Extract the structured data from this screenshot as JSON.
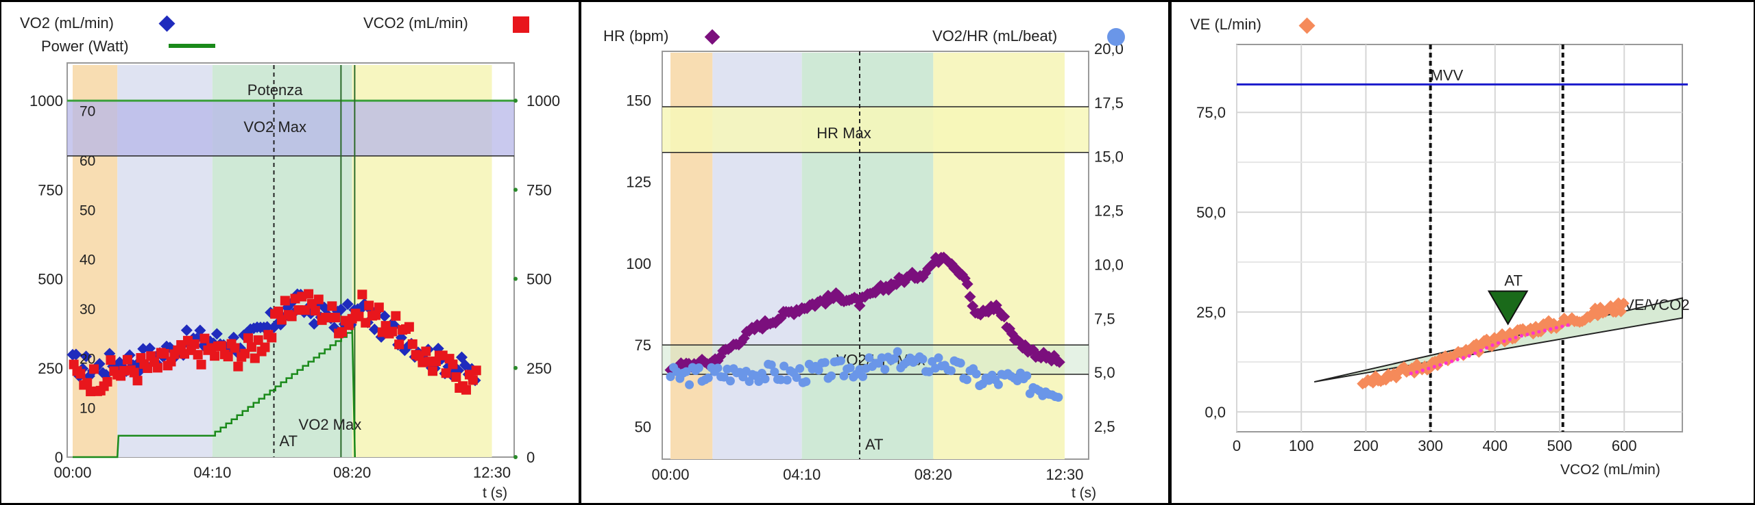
{
  "chart_data": [
    {
      "type": "scatter",
      "legend": {
        "vo2": "VO2 (mL/min)",
        "vco2": "VCO2 (mL/min)",
        "power": "Power (Watt)"
      },
      "xlabel": "t (s)",
      "xticks": [
        "00:00",
        "04:10",
        "08:20",
        "12:30"
      ],
      "x_range_s": [
        0,
        780
      ],
      "ylim": [
        0,
        1100
      ],
      "yticks_left": [
        0,
        250,
        500,
        750,
        1000
      ],
      "yticks_right": [
        0,
        250,
        500,
        750,
        1000
      ],
      "inner_scale_ticks": [
        10,
        20,
        30,
        40,
        50,
        60,
        70
      ],
      "bands_s": [
        [
          0,
          80,
          "#f8ddb2"
        ],
        [
          80,
          250,
          "#dfe3f2"
        ],
        [
          250,
          500,
          "#cfe9d6"
        ],
        [
          500,
          750,
          "#f7f6c0"
        ]
      ],
      "vo2max_band": [
        845,
        1000
      ],
      "vo2max_band_label": "VO2 Max",
      "power_line_label": "Potenza",
      "power_line_value": 1000,
      "at_time_s": 360,
      "at_label": "AT",
      "vo2max_time_s": 480,
      "vo2max_vline_label": "VO2 Max",
      "power_steps": [
        {
          "t": 0,
          "w": 0
        },
        {
          "t": 80,
          "w": 0
        },
        {
          "t": 82,
          "w": 60
        },
        {
          "t": 245,
          "w": 60
        },
        {
          "t": 500,
          "w": 360
        },
        {
          "t": 505,
          "w": 0
        }
      ],
      "vo2_series": [
        {
          "t": 0,
          "v": 260
        },
        {
          "t": 40,
          "v": 250
        },
        {
          "t": 80,
          "v": 265
        },
        {
          "t": 120,
          "v": 275
        },
        {
          "t": 160,
          "v": 290
        },
        {
          "t": 200,
          "v": 320
        },
        {
          "t": 240,
          "v": 330
        },
        {
          "t": 280,
          "v": 320
        },
        {
          "t": 320,
          "v": 330
        },
        {
          "t": 360,
          "v": 380
        },
        {
          "t": 400,
          "v": 430
        },
        {
          "t": 440,
          "v": 400
        },
        {
          "t": 480,
          "v": 390
        },
        {
          "t": 520,
          "v": 410
        },
        {
          "t": 560,
          "v": 360
        },
        {
          "t": 600,
          "v": 330
        },
        {
          "t": 640,
          "v": 280
        },
        {
          "t": 680,
          "v": 260
        },
        {
          "t": 720,
          "v": 230
        }
      ],
      "vco2_series": [
        {
          "t": 0,
          "v": 230
        },
        {
          "t": 40,
          "v": 220
        },
        {
          "t": 80,
          "v": 240
        },
        {
          "t": 120,
          "v": 250
        },
        {
          "t": 160,
          "v": 260
        },
        {
          "t": 200,
          "v": 290
        },
        {
          "t": 240,
          "v": 300
        },
        {
          "t": 280,
          "v": 290
        },
        {
          "t": 320,
          "v": 300
        },
        {
          "t": 360,
          "v": 360
        },
        {
          "t": 400,
          "v": 440
        },
        {
          "t": 440,
          "v": 420
        },
        {
          "t": 480,
          "v": 380
        },
        {
          "t": 520,
          "v": 420
        },
        {
          "t": 560,
          "v": 380
        },
        {
          "t": 600,
          "v": 330
        },
        {
          "t": 640,
          "v": 270
        },
        {
          "t": 680,
          "v": 240
        },
        {
          "t": 720,
          "v": 210
        }
      ],
      "colors": {
        "vo2": "#1f2bbd",
        "vco2": "#e8161c",
        "power": "#1a8a1a"
      }
    },
    {
      "type": "scatter",
      "legend": {
        "hr": "HR (bpm)",
        "vo2hr": "VO2/HR (mL/beat)"
      },
      "xlabel": "t (s)",
      "xticks": [
        "00:00",
        "04:10",
        "08:20",
        "12:30"
      ],
      "x_range_s": [
        0,
        780
      ],
      "ylim_left": [
        40,
        165
      ],
      "yticks_left": [
        50,
        75,
        100,
        125,
        150
      ],
      "yticks_right": [
        "2,5",
        "5,0",
        "7,5",
        "10,0",
        "12,5",
        "15,0",
        "17,5",
        "20,0"
      ],
      "bands_s": [
        [
          0,
          80,
          "#f8ddb2"
        ],
        [
          80,
          250,
          "#dfe3f2"
        ],
        [
          250,
          500,
          "#cfe9d6"
        ],
        [
          500,
          750,
          "#f7f6c0"
        ]
      ],
      "hrmax_band": [
        134,
        148
      ],
      "hrmax_label": "HR Max",
      "vo2hr_max_band": [
        66,
        75
      ],
      "vo2hr_max_label": "VO2/HR Max",
      "at_time_s": 360,
      "at_label": "AT",
      "hr_series": [
        {
          "t": 0,
          "v": 68
        },
        {
          "t": 80,
          "v": 70
        },
        {
          "t": 160,
          "v": 80
        },
        {
          "t": 240,
          "v": 86
        },
        {
          "t": 320,
          "v": 90
        },
        {
          "t": 360,
          "v": 88
        },
        {
          "t": 400,
          "v": 92
        },
        {
          "t": 440,
          "v": 95
        },
        {
          "t": 480,
          "v": 97
        },
        {
          "t": 520,
          "v": 103
        },
        {
          "t": 560,
          "v": 96
        },
        {
          "t": 580,
          "v": 84
        },
        {
          "t": 620,
          "v": 87
        },
        {
          "t": 660,
          "v": 76
        },
        {
          "t": 700,
          "v": 72
        },
        {
          "t": 740,
          "v": 70
        }
      ],
      "vo2hr_series": [
        {
          "t": 0,
          "v": 4.8
        },
        {
          "t": 80,
          "v": 4.9
        },
        {
          "t": 160,
          "v": 5.0
        },
        {
          "t": 240,
          "v": 4.9
        },
        {
          "t": 320,
          "v": 5.1
        },
        {
          "t": 400,
          "v": 5.3
        },
        {
          "t": 440,
          "v": 5.6
        },
        {
          "t": 480,
          "v": 5.3
        },
        {
          "t": 520,
          "v": 5.5
        },
        {
          "t": 560,
          "v": 4.9
        },
        {
          "t": 600,
          "v": 4.6
        },
        {
          "t": 640,
          "v": 4.7
        },
        {
          "t": 700,
          "v": 4.3
        },
        {
          "t": 740,
          "v": 4.2
        }
      ],
      "colors": {
        "hr": "#7b0f7d",
        "vo2hr": "#6a96e8"
      }
    },
    {
      "type": "scatter",
      "legend": {
        "ve": "VE (L/min)"
      },
      "xlabel": "VCO2 (mL/min)",
      "xticks": [
        0,
        100,
        200,
        300,
        400,
        500,
        600
      ],
      "xlim": [
        0,
        690
      ],
      "yticks": [
        "0,0",
        "25,0",
        "50,0",
        "75,0"
      ],
      "ylim": [
        -5,
        92
      ],
      "mvv_value": 82,
      "mvv_label": "MVV",
      "vlines": [
        300,
        505
      ],
      "at_point": {
        "x": 420,
        "y": 22
      },
      "at_label": "AT",
      "ve_vco2_label": "VE/VCO2",
      "ve_vco2_wedge": {
        "upper": [
          [
            120,
            7.5
          ],
          [
            690,
            28.5
          ]
        ],
        "lower": [
          [
            120,
            7.5
          ],
          [
            690,
            23.5
          ]
        ]
      },
      "ve_series": [
        {
          "x": 200,
          "y": 8
        },
        {
          "x": 240,
          "y": 9.5
        },
        {
          "x": 280,
          "y": 11
        },
        {
          "x": 320,
          "y": 13
        },
        {
          "x": 360,
          "y": 15
        },
        {
          "x": 400,
          "y": 18
        },
        {
          "x": 440,
          "y": 20
        },
        {
          "x": 480,
          "y": 21.5
        },
        {
          "x": 520,
          "y": 23
        },
        {
          "x": 560,
          "y": 25
        },
        {
          "x": 600,
          "y": 26.5
        }
      ],
      "colors": {
        "ve": "#f58a5a",
        "mvv": "#1a1acc",
        "fit": "#ff33cc"
      }
    }
  ]
}
